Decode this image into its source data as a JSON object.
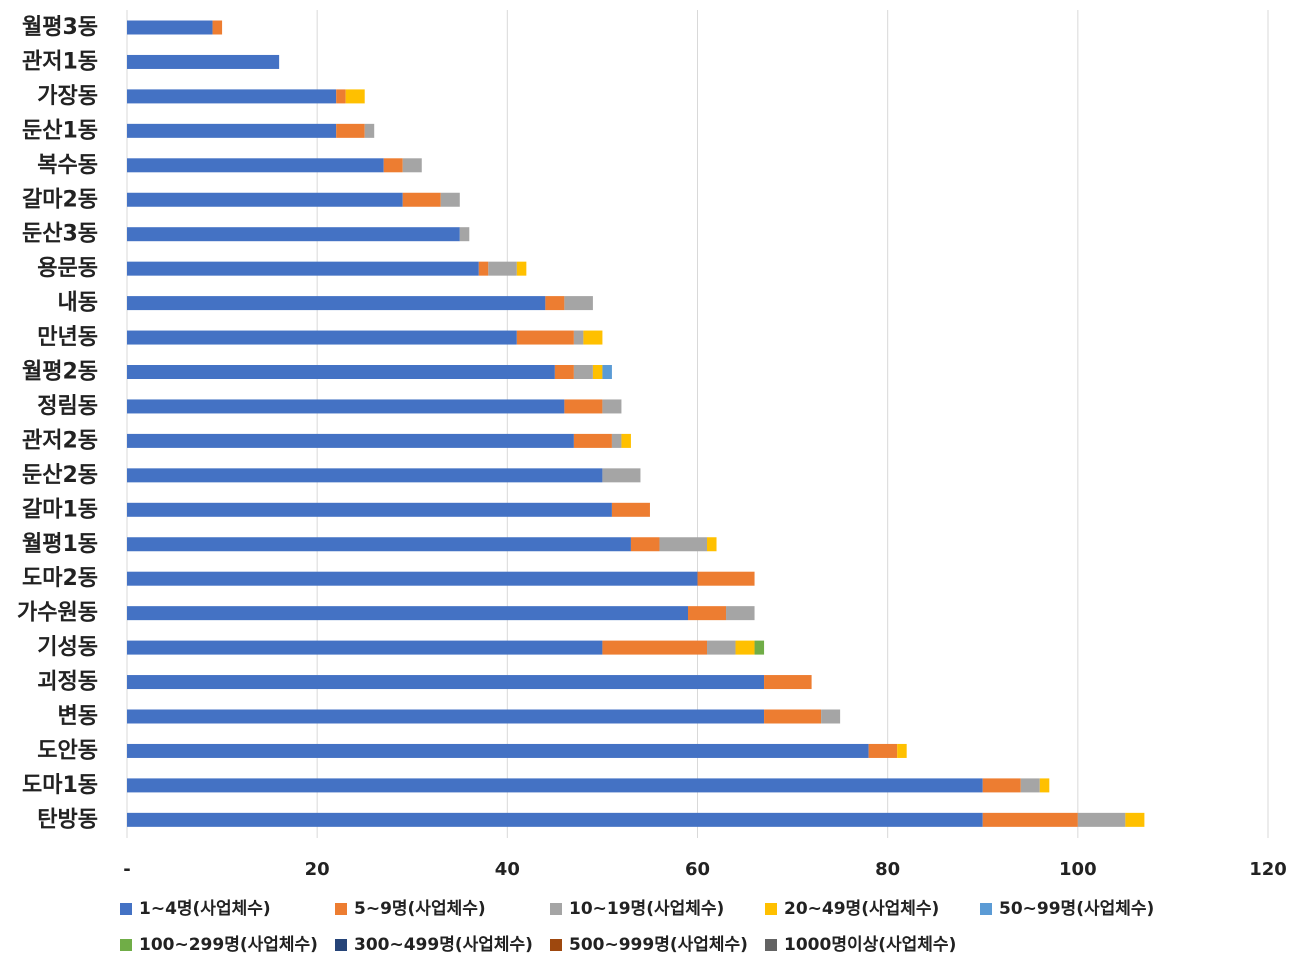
{
  "chart_data": {
    "type": "bar",
    "orientation": "horizontal",
    "stacked": true,
    "categories": [
      "월평3동",
      "관저1동",
      "가장동",
      "둔산1동",
      "복수동",
      "갈마2동",
      "둔산3동",
      "용문동",
      "내동",
      "만년동",
      "월평2동",
      "정림동",
      "관저2동",
      "둔산2동",
      "갈마1동",
      "월평1동",
      "도마2동",
      "가수원동",
      "기성동",
      "괴정동",
      "변동",
      "도안동",
      "도마1동",
      "탄방동"
    ],
    "series": [
      {
        "name": "1~4명(사업체수)",
        "color": "#4472C4",
        "values": [
          9,
          16,
          22,
          22,
          27,
          29,
          35,
          37,
          44,
          41,
          45,
          46,
          47,
          50,
          51,
          53,
          60,
          59,
          50,
          67,
          67,
          78,
          90,
          90
        ]
      },
      {
        "name": "5~9명(사업체수)",
        "color": "#ED7D31",
        "values": [
          1,
          0,
          1,
          3,
          2,
          4,
          0,
          1,
          2,
          6,
          2,
          4,
          4,
          0,
          4,
          3,
          6,
          4,
          11,
          5,
          6,
          3,
          4,
          10
        ]
      },
      {
        "name": "10~19명(사업체수)",
        "color": "#A5A5A5",
        "values": [
          0,
          0,
          0,
          1,
          2,
          2,
          1,
          3,
          3,
          1,
          2,
          2,
          1,
          4,
          0,
          5,
          0,
          3,
          3,
          0,
          2,
          0,
          2,
          5
        ]
      },
      {
        "name": "20~49명(사업체수)",
        "color": "#FFC000",
        "values": [
          0,
          0,
          2,
          0,
          0,
          0,
          0,
          1,
          0,
          2,
          1,
          0,
          1,
          0,
          0,
          1,
          0,
          0,
          2,
          0,
          0,
          1,
          1,
          2
        ]
      },
      {
        "name": "50~99명(사업체수)",
        "color": "#5B9BD5",
        "values": [
          0,
          0,
          0,
          0,
          0,
          0,
          0,
          0,
          0,
          0,
          1,
          0,
          0,
          0,
          0,
          0,
          0,
          0,
          0,
          0,
          0,
          0,
          0,
          0
        ]
      },
      {
        "name": "100~299명(사업체수)",
        "color": "#70AD47",
        "values": [
          0,
          0,
          0,
          0,
          0,
          0,
          0,
          0,
          0,
          0,
          0,
          0,
          0,
          0,
          0,
          0,
          0,
          0,
          1,
          0,
          0,
          0,
          0,
          0
        ]
      },
      {
        "name": "300~499명(사업체수)",
        "color": "#264478",
        "values": [
          0,
          0,
          0,
          0,
          0,
          0,
          0,
          0,
          0,
          0,
          0,
          0,
          0,
          0,
          0,
          0,
          0,
          0,
          0,
          0,
          0,
          0,
          0,
          0
        ]
      },
      {
        "name": "500~999명(사업체수)",
        "color": "#9E480E",
        "values": [
          0,
          0,
          0,
          0,
          0,
          0,
          0,
          0,
          0,
          0,
          0,
          0,
          0,
          0,
          0,
          0,
          0,
          0,
          0,
          0,
          0,
          0,
          0,
          0
        ]
      },
      {
        "name": "1000명이상(사업체수)",
        "color": "#636363",
        "values": [
          0,
          0,
          0,
          0,
          0,
          0,
          0,
          0,
          0,
          0,
          0,
          0,
          0,
          0,
          0,
          0,
          0,
          0,
          0,
          0,
          0,
          0,
          0,
          0
        ]
      }
    ],
    "xlim": [
      0,
      120
    ],
    "xticks": [
      0,
      20,
      40,
      60,
      80,
      100,
      120
    ],
    "xtick_labels": [
      "-",
      "20",
      "40",
      "60",
      "80",
      "100",
      "120"
    ],
    "grid": true,
    "legend_position": "bottom",
    "title": "",
    "xlabel": "",
    "ylabel": ""
  }
}
